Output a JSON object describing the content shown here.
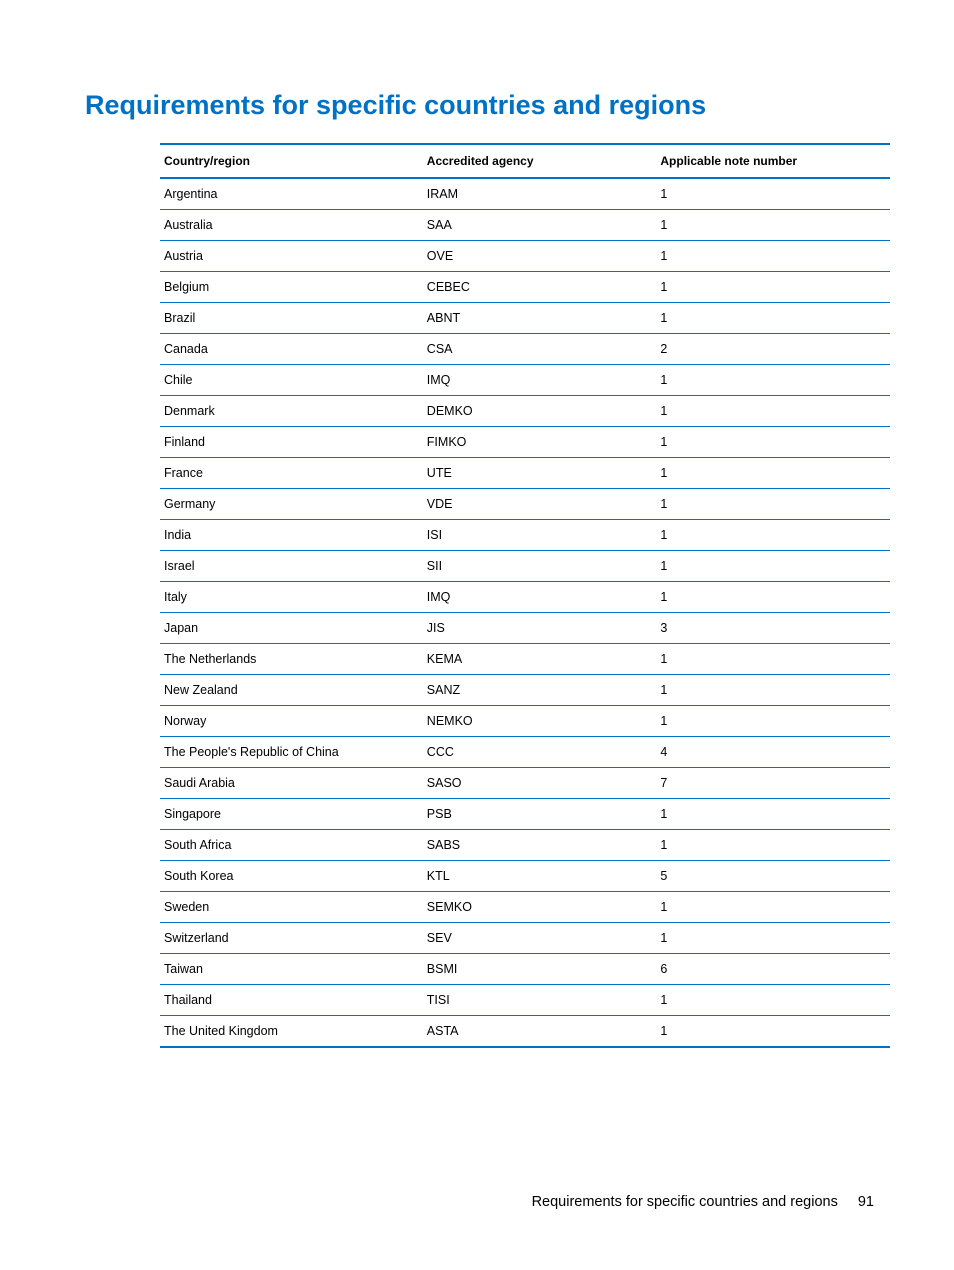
{
  "title": "Requirements for specific countries and regions",
  "title_color": "#0071c5",
  "title_fontsize": 27,
  "table": {
    "type": "table",
    "border_color": "#0071c5",
    "row_border_color": "#0071c5",
    "background_color": "#ffffff",
    "header_fontsize": 12,
    "cell_fontsize": 12.5,
    "columns": [
      {
        "label": "Country/region",
        "width_pct": 36,
        "align": "left"
      },
      {
        "label": "Accredited agency",
        "width_pct": 32,
        "align": "left"
      },
      {
        "label": "Applicable note number",
        "width_pct": 32,
        "align": "left"
      }
    ],
    "rows": [
      [
        "Argentina",
        "IRAM",
        "1"
      ],
      [
        "Australia",
        "SAA",
        "1"
      ],
      [
        "Austria",
        "OVE",
        "1"
      ],
      [
        "Belgium",
        "CEBEC",
        "1"
      ],
      [
        "Brazil",
        "ABNT",
        "1"
      ],
      [
        "Canada",
        "CSA",
        "2"
      ],
      [
        "Chile",
        "IMQ",
        "1"
      ],
      [
        "Denmark",
        "DEMKO",
        "1"
      ],
      [
        "Finland",
        "FIMKO",
        "1"
      ],
      [
        "France",
        "UTE",
        "1"
      ],
      [
        "Germany",
        "VDE",
        "1"
      ],
      [
        "India",
        "ISI",
        "1"
      ],
      [
        "Israel",
        "SII",
        "1"
      ],
      [
        "Italy",
        "IMQ",
        "1"
      ],
      [
        "Japan",
        "JIS",
        "3"
      ],
      [
        "The Netherlands",
        "KEMA",
        "1"
      ],
      [
        "New Zealand",
        "SANZ",
        "1"
      ],
      [
        "Norway",
        "NEMKO",
        "1"
      ],
      [
        "The People's Republic of China",
        "CCC",
        "4"
      ],
      [
        "Saudi Arabia",
        "SASO",
        "7"
      ],
      [
        "Singapore",
        "PSB",
        "1"
      ],
      [
        "South Africa",
        "SABS",
        "1"
      ],
      [
        "South Korea",
        "KTL",
        "5"
      ],
      [
        "Sweden",
        "SEMKO",
        "1"
      ],
      [
        "Switzerland",
        "SEV",
        "1"
      ],
      [
        "Taiwan",
        "BSMI",
        "6"
      ],
      [
        "Thailand",
        "TISI",
        "1"
      ],
      [
        "The United Kingdom",
        "ASTA",
        "1"
      ]
    ]
  },
  "footer": {
    "text": "Requirements for specific countries and regions",
    "page_number": "91",
    "fontsize": 14.5
  }
}
